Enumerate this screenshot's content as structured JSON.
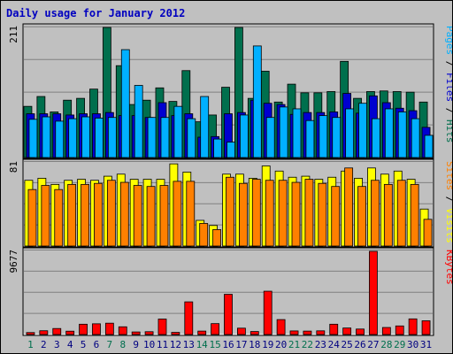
{
  "title": "Daily usage for January 2012",
  "colors": {
    "background": "#c0c0c0",
    "grid": "#808080",
    "hits": "#006f4d",
    "files": "#0000d0",
    "pages": "#00b0ff",
    "visits": "#ffff00",
    "sites": "#ff8000",
    "kbytes": "#ff0000",
    "weekday_label": "#000080",
    "weekend_label": "#006f4d",
    "title": "#0000c0"
  },
  "chart_data": {
    "type": "bar",
    "days": [
      1,
      2,
      3,
      4,
      5,
      6,
      7,
      8,
      9,
      10,
      11,
      12,
      13,
      14,
      15,
      16,
      17,
      18,
      19,
      20,
      21,
      22,
      23,
      24,
      25,
      26,
      27,
      28,
      29,
      30,
      31
    ],
    "weekend_days": [
      1,
      7,
      8,
      14,
      15,
      21,
      22,
      28,
      29
    ],
    "panels": [
      {
        "id": "top",
        "ymax": 211,
        "ymax_label": "211",
        "legend": [
          {
            "text": "Pages",
            "color": "#00b0ff"
          },
          {
            "text": " / ",
            "color": "#000000"
          },
          {
            "text": "Files",
            "color": "#0000d0"
          },
          {
            "text": " / ",
            "color": "#000000"
          },
          {
            "text": "Hits",
            "color": "#006f4d"
          }
        ],
        "series": [
          {
            "name": "Hits",
            "color": "#006f4d",
            "values": [
              83,
              99,
              74,
              93,
              96,
              111,
              211,
              149,
              86,
              93,
              113,
              91,
              141,
              58,
              69,
              114,
              211,
              96,
              140,
              90,
              119,
              105,
              105,
              107,
              156,
              96,
              107,
              108,
              107,
              106,
              90
            ]
          },
          {
            "name": "Files",
            "color": "#0000d0",
            "values": [
              71,
              71,
              71,
              69,
              71,
              71,
              73,
              68,
              68,
              65,
              89,
              68,
              71,
              33,
              34,
              71,
              73,
              93,
              88,
              86,
              70,
              73,
              73,
              74,
              104,
              72,
              100,
              89,
              80,
              76,
              49
            ]
          },
          {
            "name": "Pages",
            "color": "#00b0ff",
            "values": [
              62,
              66,
              59,
              63,
              66,
              64,
              65,
              175,
              117,
              65,
              65,
              83,
              63,
              99,
              30,
              25,
              69,
              181,
              65,
              82,
              79,
              60,
              68,
              65,
              79,
              88,
              63,
              79,
              74,
              63,
              36
            ]
          }
        ]
      },
      {
        "id": "middle",
        "ymax": 81,
        "ymax_label": "81",
        "legend": [
          {
            "text": "Sites",
            "color": "#ff8000"
          },
          {
            "text": " / ",
            "color": "#000000"
          },
          {
            "text": "Visits",
            "color": "#ffff00"
          }
        ],
        "series": [
          {
            "name": "Visits",
            "color": "#ffff00",
            "values": [
              64,
              66,
              60,
              64,
              65,
              64,
              68,
              70,
              65,
              65,
              65,
              80,
              72,
              25,
              20,
              70,
              70,
              66,
              78,
              73,
              67,
              68,
              65,
              67,
              73,
              66,
              76,
              70,
              73,
              65,
              36
            ]
          },
          {
            "name": "Sites",
            "color": "#ff8000",
            "values": [
              55,
              59,
              55,
              60,
              60,
              61,
              64,
              62,
              59,
              58,
              59,
              63,
              63,
              22,
              16,
              67,
              61,
              65,
              64,
              64,
              62,
              65,
              61,
              58,
              76,
              58,
              64,
              60,
              64,
              60,
              26
            ]
          }
        ]
      },
      {
        "id": "bottom",
        "ymax": 9677,
        "ymax_label": "9677",
        "legend": [
          {
            "text": "KBytes",
            "color": "#ff0000"
          }
        ],
        "series": [
          {
            "name": "KBytes",
            "color": "#ff0000",
            "values": [
              230,
              440,
              700,
              390,
              1200,
              1250,
              1320,
              900,
              300,
              330,
              1800,
              250,
              3800,
              400,
              1270,
              4680,
              740,
              350,
              5040,
              1740,
              420,
              400,
              430,
              1200,
              760,
              640,
              9677,
              820,
              1000,
              1820,
              1600
            ]
          }
        ]
      }
    ]
  }
}
